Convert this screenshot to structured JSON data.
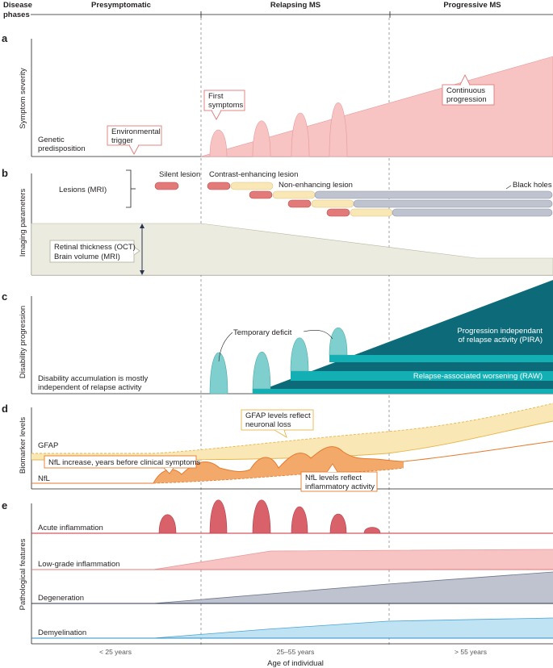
{
  "header": {
    "disease_line1": "Disease",
    "disease_line2": "phases",
    "phases": [
      "Presymptomatic",
      "Relapsing MS",
      "Progressive MS"
    ]
  },
  "panel_a": {
    "letter": "a",
    "axis_label": "Symptom severity",
    "genetic_line1": "Genetic",
    "genetic_line2": "predisposition",
    "env_line1": "Environmental",
    "env_line2": "trigger",
    "first_line1": "First",
    "first_line2": "symptoms",
    "cont_line1": "Continuous",
    "cont_line2": "progression"
  },
  "panel_b": {
    "letter": "b",
    "axis_label": "Imaging parameters",
    "lesions": "Lesions (MRI)",
    "silent": "Silent lesion",
    "contrast": "Contrast-enhancing lesion",
    "nonenh": "Non-enhancing lesion",
    "black": "Black holes",
    "retinal": "Retinal thickness (OCT)",
    "brain": "Brain volume (MRI)"
  },
  "panel_c": {
    "letter": "c",
    "axis_label": "Disability progression",
    "temp": "Temporary deficit",
    "pira_line1": "Progression independant",
    "pira_line2": "of relapse activity (PIRA)",
    "raw": "Relapse-associated worsening (RAW)",
    "accum_line1": "Disability accumulation is mostly",
    "accum_line2": "independent of relapse activity"
  },
  "panel_d": {
    "letter": "d",
    "axis_label": "Biomarker levels",
    "gfap": "GFAP",
    "nfl": "NfL",
    "gfap_note_line1": "GFAP levels reflect",
    "gfap_note_line2": "neuronal loss",
    "nfl_increase": "NfL increase, years before clinical symptoms",
    "nfl_note_line1": "NfL levels reflect",
    "nfl_note_line2": "inflammatory activity"
  },
  "panel_e": {
    "letter": "e",
    "axis_label": "Pathological features",
    "acute": "Acute inflammation",
    "lowgrade": "Low-grade inflammation",
    "degen": "Degeneration",
    "demyel": "Demyelination"
  },
  "x_axis": {
    "ticks": [
      "< 25 years",
      "25–55 years",
      "> 55 years"
    ],
    "title": "Age of individual"
  },
  "colors": {
    "pink": "#f7c3c3",
    "red": "#d9616a",
    "beige": "#ecebdf",
    "gray_blue": "#bfc3cf",
    "teal_dark": "#0d6b79",
    "teal_light": "#7fcfcf",
    "teal_mid": "#12b0b5",
    "yellow": "#f9e7b5",
    "orange": "#f3a96a",
    "blue_light": "#bfe3f3"
  }
}
